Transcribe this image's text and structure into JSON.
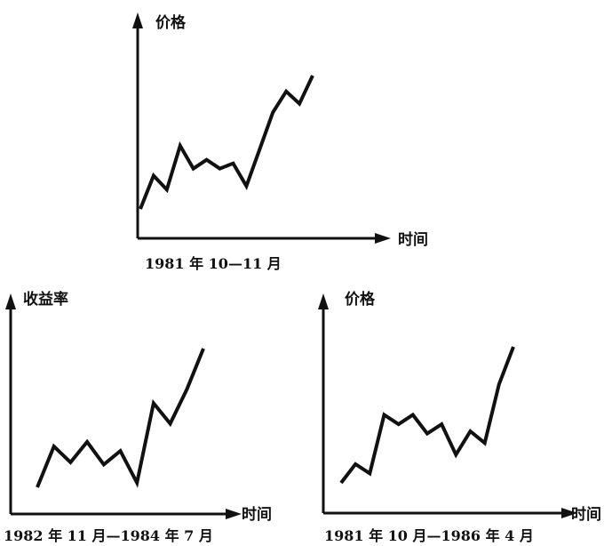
{
  "chart_data": [
    {
      "type": "line",
      "ylabel": "价格",
      "xlabel": "时间",
      "caption": "1981 年 10—11 月",
      "x": [
        0,
        1,
        2,
        3,
        4,
        5,
        6,
        7,
        8,
        9,
        10,
        11,
        12,
        13
      ],
      "series": [
        {
          "values": [
            2,
            3.9,
            3.1,
            5.6,
            4.3,
            4.8,
            4.3,
            4.6,
            3.3,
            5.4,
            7.5,
            8.7,
            8.0,
            9.6
          ]
        }
      ]
    },
    {
      "type": "line",
      "ylabel": "收益率",
      "xlabel": "时间",
      "caption": "1982 年 11 月—1984 年 7 月",
      "x": [
        0,
        1,
        2,
        3,
        4,
        5,
        6,
        7,
        8,
        9,
        10
      ],
      "series": [
        {
          "values": [
            2,
            3.8,
            3.1,
            4.0,
            3.0,
            3.6,
            2.2,
            5.7,
            4.8,
            6.3,
            8.1
          ]
        }
      ]
    },
    {
      "type": "line",
      "ylabel": "价格",
      "xlabel": "时间",
      "caption": "1981 年 10 月—1986 年 4 月",
      "x": [
        0,
        1,
        2,
        3,
        4,
        5,
        6,
        7,
        8,
        9,
        10,
        11,
        12
      ],
      "series": [
        {
          "values": [
            2,
            2.8,
            2.4,
            4.9,
            4.5,
            4.9,
            4.1,
            4.5,
            3.2,
            4.2,
            3.7,
            6.2,
            7.8
          ]
        }
      ]
    }
  ]
}
